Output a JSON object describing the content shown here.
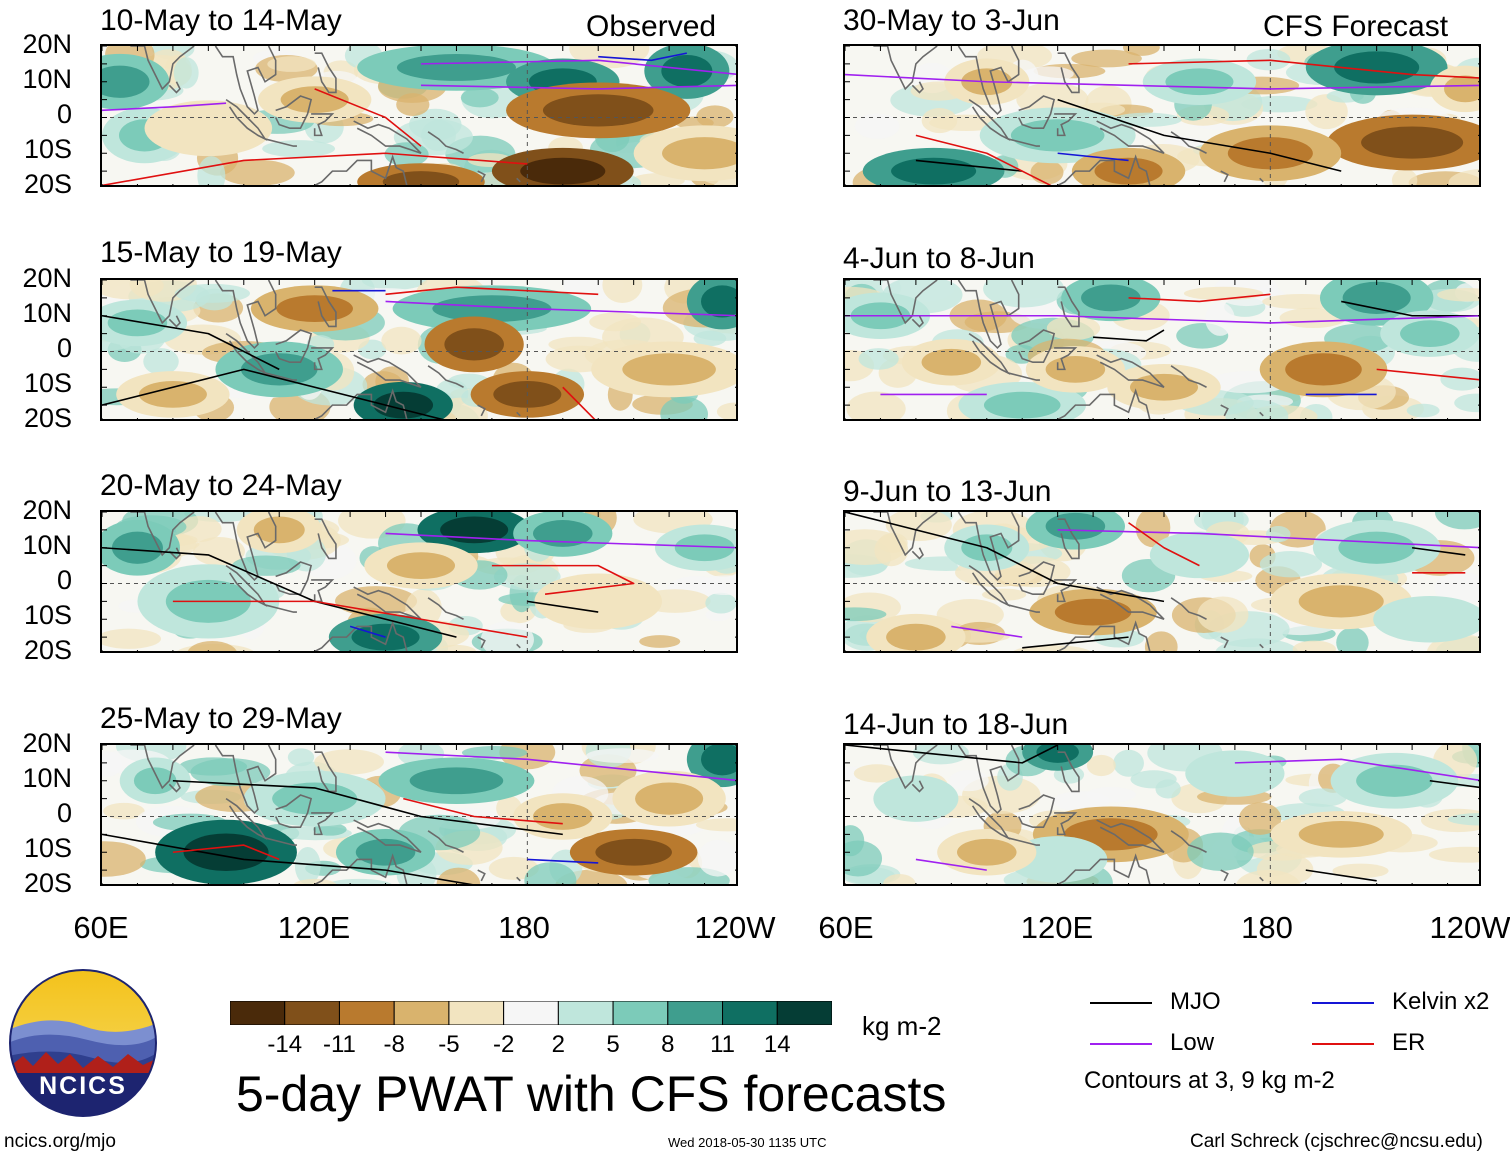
{
  "figure": {
    "main_title": "5-day PWAT with CFS forecasts",
    "units_label": "kg m-2",
    "site_url": "ncics.org/mjo",
    "timestamp": "Wed 2018-05-30 1135 UTC",
    "author": "Carl Schreck (cjschrec@ncsu.edu)",
    "logo_text": "NCICS",
    "contour_note": "Contours at 3, 9 kg m-2"
  },
  "columns": {
    "left_tag": "Observed",
    "right_tag": "CFS Forecast"
  },
  "axes": {
    "lat_ticks": [
      "20N",
      "10N",
      "0",
      "10S",
      "20S"
    ],
    "lon_ticks": [
      "60E",
      "120E",
      "180",
      "120W"
    ]
  },
  "legend": {
    "items": [
      {
        "label": "MJO",
        "color": "#000000"
      },
      {
        "label": "Kelvin x2",
        "color": "#1515d6"
      },
      {
        "label": "Low",
        "color": "#a020f0"
      },
      {
        "label": "ER",
        "color": "#e01010"
      }
    ]
  },
  "chart_data": {
    "type": "heatmap",
    "title": "5-day PWAT with CFS forecasts",
    "variable": "5-day precipitable water anomaly",
    "units": "kg m-2",
    "x_range": [
      "60E",
      "120W"
    ],
    "y_range": [
      "20S",
      "20N"
    ],
    "xticks": [
      "60E",
      "120E",
      "180",
      "120W"
    ],
    "yticks": [
      "20N",
      "10N",
      "0",
      "10S",
      "20S"
    ],
    "colorbar": {
      "levels": [
        "-14",
        "-11",
        "-8",
        "-5",
        "-2",
        "2",
        "5",
        "8",
        "11",
        "14"
      ],
      "colors": [
        "#4a2a0a",
        "#80501a",
        "#b97a2e",
        "#d9b36d",
        "#f2e4c0",
        "#f6f6f6",
        "#bfe6dc",
        "#7ccbb9",
        "#3f9e8e",
        "#0f6f62",
        "#053d35"
      ]
    },
    "contour_levels_kg_m2": [
      3,
      9
    ],
    "contour_types": [
      "MJO",
      "Kelvin x2",
      "Low",
      "ER"
    ],
    "panels": [
      {
        "period": "10-May to 14-May",
        "source": "Observed"
      },
      {
        "period": "15-May to 19-May",
        "source": "Observed"
      },
      {
        "period": "20-May to 24-May",
        "source": "Observed"
      },
      {
        "period": "25-May to 29-May",
        "source": "Observed"
      },
      {
        "period": "30-May to 3-Jun",
        "source": "CFS Forecast"
      },
      {
        "period": "4-Jun to 8-Jun",
        "source": "CFS Forecast"
      },
      {
        "period": "9-Jun to 13-Jun",
        "source": "CFS Forecast"
      },
      {
        "period": "14-Jun to 18-Jun",
        "source": "CFS Forecast"
      }
    ]
  }
}
